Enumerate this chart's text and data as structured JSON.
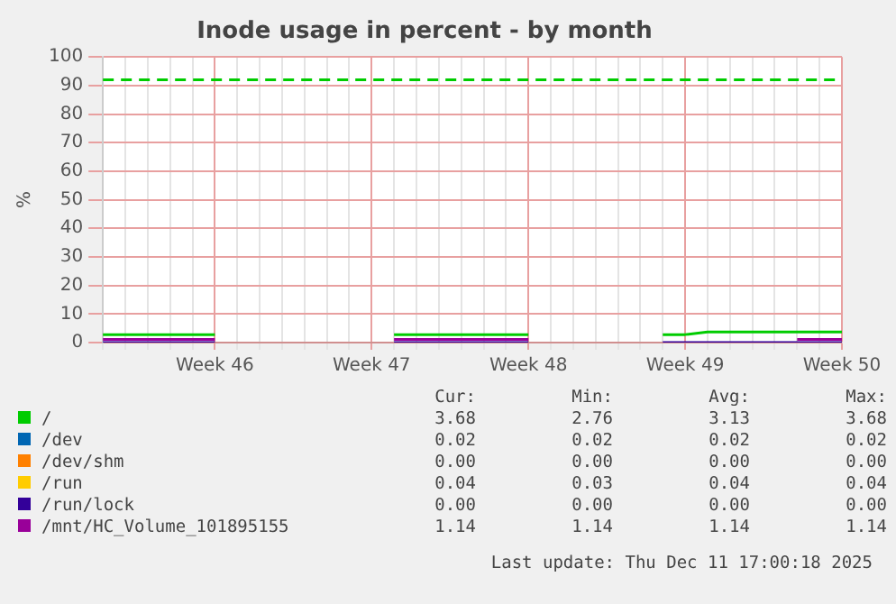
{
  "chart_data": {
    "type": "line",
    "title": "Inode usage in percent - by month",
    "ylabel": "%",
    "categories": [
      null,
      null,
      null,
      null,
      null,
      "Week 46",
      null,
      null,
      null,
      null,
      null,
      null,
      "Week 47",
      null,
      null,
      null,
      null,
      null,
      null,
      "Week 48",
      null,
      null,
      null,
      null,
      null,
      null,
      "Week 49",
      null,
      null,
      null,
      null,
      null,
      null,
      "Week 50"
    ],
    "ylim": [
      0,
      100
    ],
    "yticks": [
      0,
      10,
      20,
      30,
      40,
      50,
      60,
      70,
      80,
      90,
      100
    ],
    "grid": true,
    "legend": "bottom",
    "marker": "none",
    "line_style": "solid",
    "series": [
      {
        "name": "/",
        "color": "#00cc00",
        "values": [
          2.8,
          2.8,
          2.8,
          2.8,
          2.8,
          2.8,
          null,
          null,
          null,
          null,
          null,
          null,
          null,
          2.8,
          2.8,
          2.8,
          2.8,
          2.8,
          2.8,
          2.8,
          null,
          null,
          null,
          null,
          null,
          2.8,
          2.8,
          3.7,
          3.7,
          3.7,
          3.7,
          3.7,
          3.7,
          3.7
        ]
      },
      {
        "name": "/dev",
        "color": "#0066b3",
        "values": [
          null,
          null,
          null,
          null,
          null,
          null,
          null,
          null,
          null,
          null,
          null,
          null,
          null,
          null,
          null,
          null,
          null,
          null,
          null,
          null,
          null,
          null,
          null,
          null,
          null,
          null,
          null,
          null,
          null,
          null,
          null,
          null,
          null,
          null
        ]
      },
      {
        "name": "/dev/shm",
        "color": "#ff8000",
        "values": [
          null,
          null,
          null,
          null,
          null,
          null,
          null,
          null,
          null,
          null,
          null,
          null,
          null,
          null,
          null,
          null,
          null,
          null,
          null,
          null,
          null,
          null,
          null,
          null,
          null,
          null,
          null,
          null,
          null,
          null,
          null,
          null,
          null,
          null
        ]
      },
      {
        "name": "/run",
        "color": "#ffcc00",
        "values": [
          null,
          null,
          null,
          null,
          null,
          null,
          null,
          null,
          null,
          null,
          null,
          null,
          null,
          null,
          null,
          null,
          null,
          null,
          null,
          null,
          null,
          null,
          null,
          null,
          null,
          null,
          null,
          null,
          null,
          null,
          null,
          null,
          null,
          null
        ]
      },
      {
        "name": "/run/lock",
        "color": "#330099",
        "values": [
          0,
          0,
          0,
          0,
          0,
          0,
          null,
          null,
          null,
          null,
          null,
          null,
          null,
          0,
          0,
          0,
          0,
          0,
          0,
          0,
          null,
          null,
          null,
          null,
          null,
          0,
          0,
          0,
          0,
          0,
          0,
          0,
          0,
          0
        ]
      },
      {
        "name": "/mnt/HC_Volume_101895155",
        "color": "#990099",
        "values": [
          1.1,
          1.1,
          1.1,
          1.1,
          1.1,
          1.1,
          null,
          null,
          null,
          null,
          null,
          null,
          null,
          1.1,
          1.1,
          1.1,
          1.1,
          1.1,
          1.1,
          1.1,
          null,
          null,
          null,
          null,
          null,
          null,
          null,
          null,
          null,
          null,
          null,
          1.1,
          1.1,
          1.1
        ]
      }
    ],
    "ref_lines": [
      {
        "axis": "y",
        "value": 92,
        "color": "#00cc00",
        "line_style": "dashed"
      }
    ],
    "annotations": [
      "Cur:",
      "Min:",
      "Avg:",
      "Max:",
      "3.68",
      "2.76",
      "3.13",
      "3.68",
      "0.02",
      "0.02",
      "0.02",
      "0.02",
      "0.00",
      "0.00",
      "0.00",
      "0.00",
      "0.04",
      "0.03",
      "0.04",
      "0.04",
      "0.00",
      "0.00",
      "0.00",
      "0.00",
      "1.14",
      "1.14",
      "1.14",
      "1.14",
      "Last update: Thu Dec 11 17:00:18 2025"
    ]
  }
}
